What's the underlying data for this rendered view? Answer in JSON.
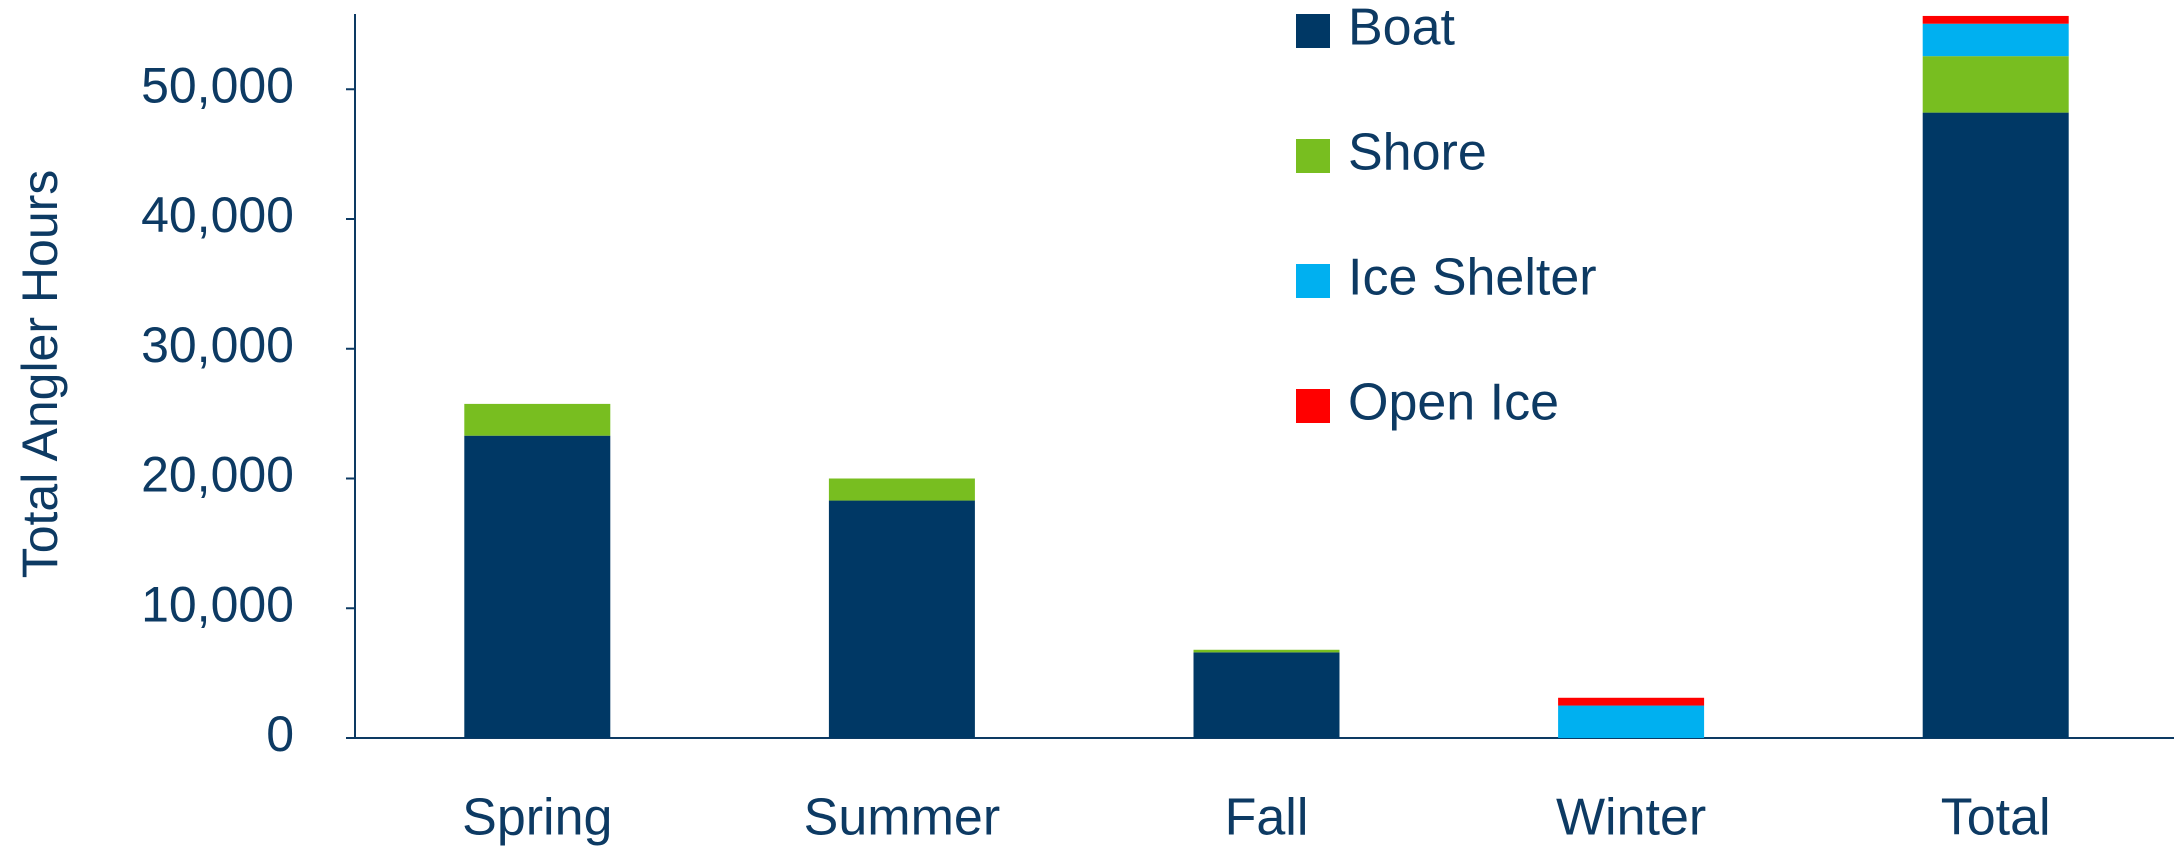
{
  "chart_data": {
    "type": "stacked_bar",
    "y_axis_label": "Total Angler Hours",
    "categories": [
      "Spring",
      "Summer",
      "Fall",
      "Winter",
      "Total"
    ],
    "series": [
      {
        "name": "Boat",
        "color": "#003865",
        "values": [
          23300,
          18300,
          6600,
          0,
          48200
        ]
      },
      {
        "name": "Shore",
        "color": "#78be20",
        "values": [
          2450,
          1700,
          200,
          0,
          4350
        ]
      },
      {
        "name": "Ice Shelter",
        "color": "#00b0f0",
        "values": [
          0,
          0,
          0,
          2500,
          2500
        ]
      },
      {
        "name": "Open Ice",
        "color": "#ff0000",
        "values": [
          0,
          0,
          0,
          600,
          600
        ]
      }
    ],
    "ylim": [
      0,
      55800
    ],
    "yticks": [
      0,
      {
        "value": 10000,
        "label": "10,000"
      },
      {
        "value": 20000,
        "label": "20,000"
      },
      {
        "value": 30000,
        "label": "30,000"
      },
      {
        "value": 40000,
        "label": "40,000"
      },
      {
        "value": 50000,
        "label": "50,000"
      }
    ],
    "legend": "top-right"
  }
}
